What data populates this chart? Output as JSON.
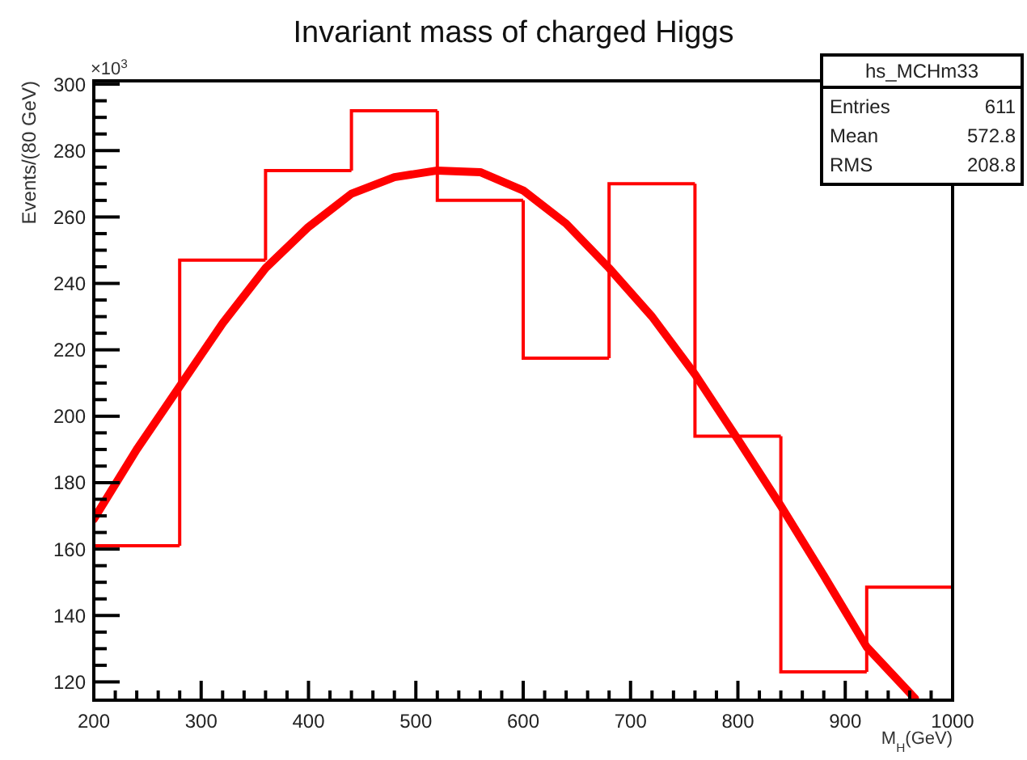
{
  "chart_data": {
    "type": "histogram",
    "title": "Invariant mass of charged Higgs",
    "xlabel": "M$_{H}$(GeV)",
    "ylabel": "Events/(80 GeV)",
    "annotations": [
      "×10$^{3}$",
      "hs_MCHm33",
      "Entries 611",
      "Mean 572.8",
      "RMS 208.8"
    ],
    "xlim": [
      200,
      1000
    ],
    "ylim": [
      114.5,
      301
    ],
    "xticks": [
      200,
      300,
      400,
      500,
      600,
      700,
      800,
      900,
      1000
    ],
    "yticks": [
      120,
      140,
      160,
      180,
      200,
      220,
      240,
      260,
      280,
      300
    ],
    "grid": false,
    "bins": [
      200,
      280,
      360,
      440,
      520,
      600,
      680,
      760,
      840,
      920,
      1000
    ],
    "series": [
      {
        "color": "#ff0000",
        "values": [
          161,
          247,
          274,
          292,
          265,
          217.5,
          270,
          194,
          123,
          148.5
        ]
      },
      {
        "type": "line",
        "color": "#ff0000",
        "x": [
          200,
          240,
          280,
          320,
          360,
          400,
          440,
          480,
          520,
          560,
          600,
          640,
          680,
          720,
          760,
          800,
          840,
          880,
          920,
          965
        ],
        "values": [
          169,
          190,
          209,
          228,
          244.6,
          257,
          267,
          272,
          274,
          273.5,
          268,
          258,
          244.6,
          230,
          212.6,
          193,
          173,
          152,
          130.5,
          115
        ]
      }
    ]
  }
}
